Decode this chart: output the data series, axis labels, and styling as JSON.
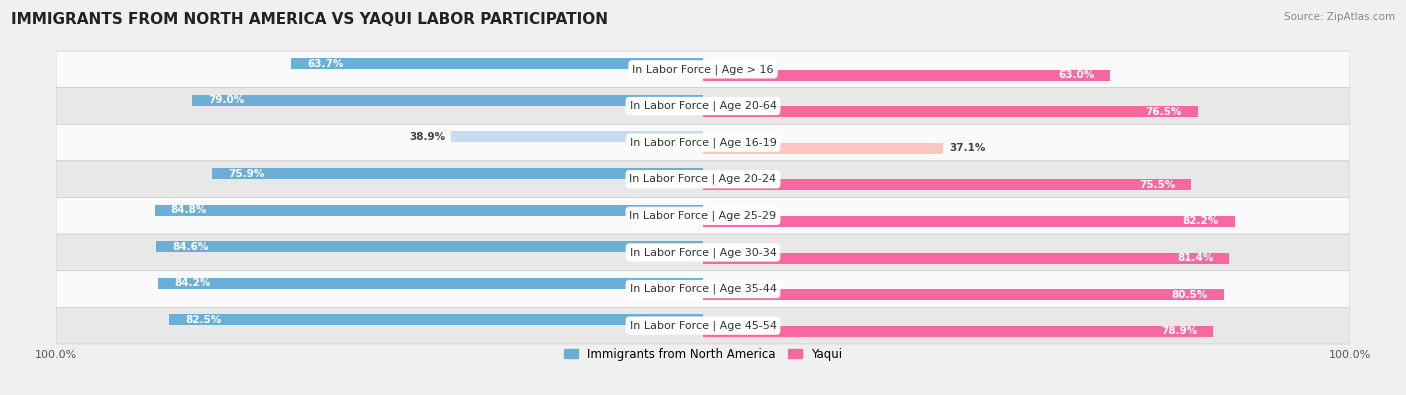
{
  "title": "IMMIGRANTS FROM NORTH AMERICA VS YAQUI LABOR PARTICIPATION",
  "source": "Source: ZipAtlas.com",
  "categories": [
    "In Labor Force | Age > 16",
    "In Labor Force | Age 20-64",
    "In Labor Force | Age 16-19",
    "In Labor Force | Age 20-24",
    "In Labor Force | Age 25-29",
    "In Labor Force | Age 30-34",
    "In Labor Force | Age 35-44",
    "In Labor Force | Age 45-54"
  ],
  "north_america_values": [
    63.7,
    79.0,
    38.9,
    75.9,
    84.8,
    84.6,
    84.2,
    82.5
  ],
  "yaqui_values": [
    63.0,
    76.5,
    37.1,
    75.5,
    82.2,
    81.4,
    80.5,
    78.9
  ],
  "north_america_color": "#6baed6",
  "north_america_color_light": "#c6dbef",
  "yaqui_color": "#f768a1",
  "yaqui_color_light": "#fcc5c0",
  "max_value": 100.0,
  "bg_color": "#f0f0f0",
  "row_bg_light": "#fafafa",
  "row_bg_dark": "#e8e8e8",
  "title_fontsize": 11,
  "label_fontsize": 8,
  "value_fontsize": 7.5,
  "legend_fontsize": 8.5
}
